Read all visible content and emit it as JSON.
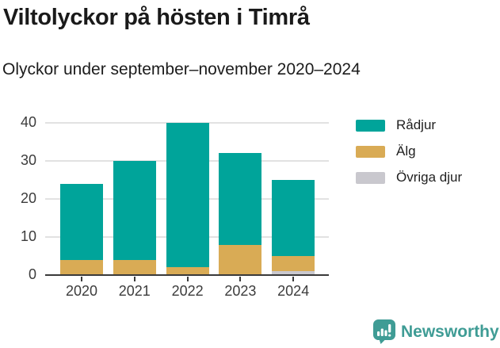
{
  "header": {
    "title": "Viltolyckor på hösten i Timrå",
    "subtitle": "Olyckor under september–november 2020–2024"
  },
  "chart_data": {
    "type": "bar",
    "stacked": true,
    "title": "Viltolyckor på hösten i Timrå",
    "subtitle": "Olyckor under september–november 2020–2024",
    "xlabel": "",
    "ylabel": "",
    "categories": [
      "2020",
      "2021",
      "2022",
      "2023",
      "2024"
    ],
    "series": [
      {
        "name": "Rådjur",
        "color": "#00a49a",
        "values": [
          20,
          26,
          38,
          24,
          20
        ]
      },
      {
        "name": "Älg",
        "color": "#d9ab55",
        "values": [
          4,
          4,
          2,
          8,
          4
        ]
      },
      {
        "name": "Övriga djur",
        "color": "#c9c8ce",
        "values": [
          0,
          0,
          0,
          0,
          1
        ]
      }
    ],
    "totals": [
      24,
      30,
      40,
      32,
      25
    ],
    "ylim": [
      0,
      40
    ],
    "y_ticks": [
      0,
      10,
      20,
      30,
      40
    ],
    "grid": true,
    "legend_position": "right"
  },
  "colors": {
    "radjur": "#00a49a",
    "alg": "#d9ab55",
    "ovriga_djur": "#c9c8ce",
    "grid_line": "#e2e2e2",
    "axis_line": "#3a3a3a",
    "brand_teal": "#3f9c95"
  },
  "footer": {
    "brand": "Newsworthy"
  }
}
